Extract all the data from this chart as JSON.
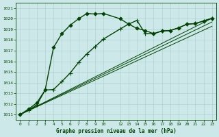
{
  "title": "Graphe pression niveau de la mer (hPa)",
  "bg_color": "#cce8e8",
  "grid_color": "#aacccc",
  "line_color": "#004400",
  "marker_color": "#004400",
  "ylim": [
    1010.5,
    1021.5
  ],
  "xlim": [
    -0.5,
    23.5
  ],
  "yticks": [
    1011,
    1012,
    1013,
    1014,
    1015,
    1016,
    1017,
    1018,
    1019,
    1020,
    1021
  ],
  "xticks": [
    0,
    1,
    2,
    3,
    4,
    5,
    6,
    7,
    8,
    9,
    10,
    12,
    13,
    14,
    15,
    16,
    17,
    18,
    19,
    20,
    21,
    22,
    23
  ],
  "xtick_labels": [
    "0",
    "1",
    "2",
    "3",
    "4",
    "5",
    "6",
    "7",
    "8",
    "9",
    "10",
    "12",
    "13",
    "14",
    "15",
    "16",
    "17",
    "18",
    "19",
    "20",
    "21",
    "22",
    "23"
  ],
  "series": [
    {
      "x": [
        0,
        1,
        2,
        3,
        4,
        5,
        6,
        7,
        8,
        9,
        10,
        12,
        13,
        14,
        15,
        16,
        17,
        18,
        19,
        20,
        21,
        22,
        23
      ],
      "y": [
        1011.0,
        1011.5,
        1012.1,
        1013.3,
        1017.3,
        1018.6,
        1019.4,
        1020.0,
        1020.5,
        1020.45,
        1020.5,
        1020.0,
        1019.5,
        1019.1,
        1018.9,
        1018.6,
        1018.85,
        1018.9,
        1019.15,
        1019.5,
        1019.55,
        1019.8,
        1020.05
      ],
      "marker": "D",
      "markersize": 2.5,
      "linewidth": 1.0
    },
    {
      "x": [
        0,
        1,
        2,
        3,
        4,
        5,
        6,
        7,
        8,
        9,
        10,
        12,
        13,
        14,
        15,
        16,
        17,
        18,
        19,
        20,
        21,
        22,
        23
      ],
      "y": [
        1011.0,
        1011.4,
        1011.9,
        1013.3,
        1013.35,
        1014.1,
        1014.9,
        1015.9,
        1016.7,
        1017.4,
        1018.1,
        1019.05,
        1019.5,
        1019.85,
        1018.6,
        1018.6,
        1018.85,
        1018.9,
        1019.15,
        1019.5,
        1019.55,
        1019.8,
        1020.05
      ],
      "marker": "+",
      "markersize": 4,
      "linewidth": 1.0
    },
    {
      "x": [
        0,
        23
      ],
      "y": [
        1011.0,
        1020.05
      ],
      "marker": null,
      "markersize": 0,
      "linewidth": 0.7
    },
    {
      "x": [
        0,
        23
      ],
      "y": [
        1011.0,
        1019.7
      ],
      "marker": null,
      "markersize": 0,
      "linewidth": 0.7
    },
    {
      "x": [
        0,
        23
      ],
      "y": [
        1011.0,
        1019.3
      ],
      "marker": null,
      "markersize": 0,
      "linewidth": 0.7
    }
  ]
}
